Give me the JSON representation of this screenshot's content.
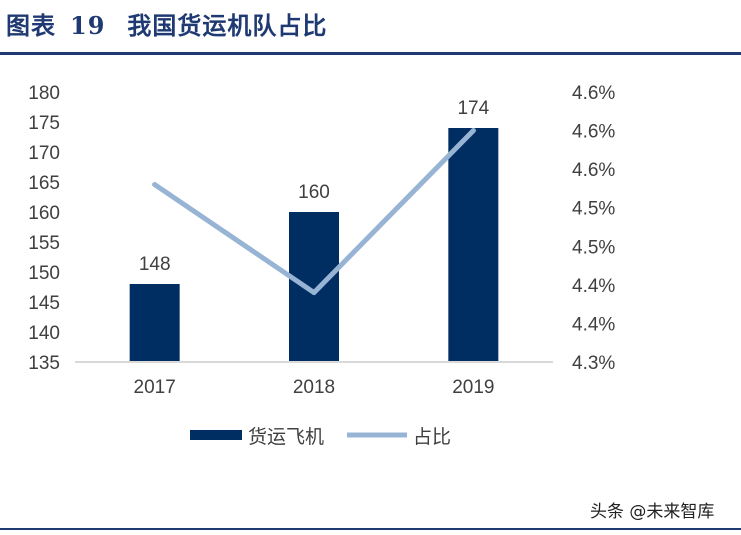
{
  "header": {
    "figure_label": "图表",
    "figure_number": "19",
    "title": "我国货运机队占比"
  },
  "watermark": "头条 @未来智库",
  "chart_data": {
    "type": "bar+line",
    "categories": [
      "2017",
      "2018",
      "2019"
    ],
    "series": [
      {
        "name": "货运飞机",
        "type": "bar",
        "axis": "left",
        "color": "#002d62",
        "values": [
          148,
          160,
          174
        ],
        "data_labels": [
          "148",
          "160",
          "174"
        ]
      },
      {
        "name": "占比",
        "type": "line",
        "axis": "right",
        "color": "#98b4d4",
        "values": [
          4.53,
          4.39,
          4.6
        ]
      }
    ],
    "y_left": {
      "ylim": [
        135,
        180
      ],
      "ticks": [
        135,
        140,
        145,
        150,
        155,
        160,
        165,
        170,
        175,
        180
      ]
    },
    "y_right": {
      "ylim": [
        4.3,
        4.65
      ],
      "ticks": [
        4.3,
        4.35,
        4.4,
        4.45,
        4.5,
        4.55,
        4.6,
        4.65
      ],
      "tick_labels": [
        "4.3%",
        "4.4%",
        "4.4%",
        "4.5%",
        "4.5%",
        "4.6%",
        "4.6%",
        "4.6%"
      ]
    },
    "legend_position": "bottom",
    "grid": false
  }
}
